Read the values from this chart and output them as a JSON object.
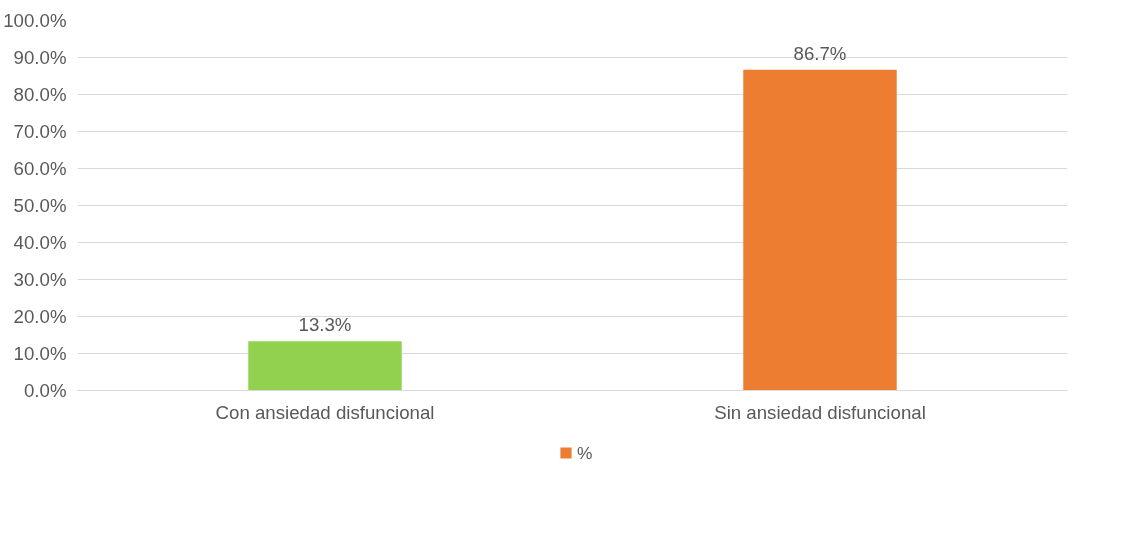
{
  "chart_data": {
    "type": "bar",
    "categories": [
      "Con ansiedad disfuncional",
      "Sin ansiedad disfuncional"
    ],
    "series": [
      {
        "name": "%",
        "color": "#ed7d31",
        "colors": [
          "#92d050",
          "#ed7d31"
        ],
        "values": [
          13.3,
          86.7
        ],
        "value_labels": [
          "13.3%",
          "86.7%"
        ]
      }
    ],
    "ylim": [
      0,
      100
    ],
    "yticks": [
      {
        "value": 0,
        "label": "0.0%"
      },
      {
        "value": 10,
        "label": "10.0%"
      },
      {
        "value": 20,
        "label": "20.0%"
      },
      {
        "value": 30,
        "label": "30.0%"
      },
      {
        "value": 40,
        "label": "40.0%"
      },
      {
        "value": 50,
        "label": "50.0%"
      },
      {
        "value": 60,
        "label": "60.0%"
      },
      {
        "value": 70,
        "label": "70.0%"
      },
      {
        "value": 80,
        "label": "80.0%"
      },
      {
        "value": 90,
        "label": "90.0%"
      },
      {
        "value": 100,
        "label": "100.0%"
      }
    ],
    "grid": "y",
    "legend": "bottom"
  }
}
